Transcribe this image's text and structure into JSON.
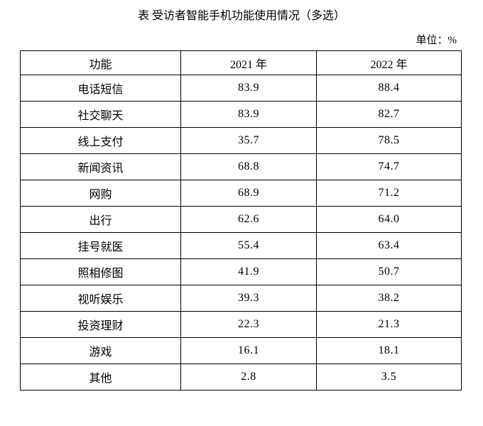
{
  "title": "表 受访者智能手机功能使用情况（多选）",
  "unit_label": "单位：%",
  "chart_data": {
    "type": "table",
    "title": "受访者智能手机功能使用情况（多选）",
    "unit": "%",
    "columns": [
      "功能",
      "2021 年",
      "2022 年"
    ],
    "rows": [
      [
        "电话短信",
        "83.9",
        "88.4"
      ],
      [
        "社交聊天",
        "83.9",
        "82.7"
      ],
      [
        "线上支付",
        "35.7",
        "78.5"
      ],
      [
        "新闻资讯",
        "68.8",
        "74.7"
      ],
      [
        "网购",
        "68.9",
        "71.2"
      ],
      [
        "出行",
        "62.6",
        "64.0"
      ],
      [
        "挂号就医",
        "55.4",
        "63.4"
      ],
      [
        "照相修图",
        "41.9",
        "50.7"
      ],
      [
        "视听娱乐",
        "39.3",
        "38.2"
      ],
      [
        "投资理财",
        "22.3",
        "21.3"
      ],
      [
        "游戏",
        "16.1",
        "18.1"
      ],
      [
        "其他",
        "2.8",
        "3.5"
      ]
    ]
  }
}
